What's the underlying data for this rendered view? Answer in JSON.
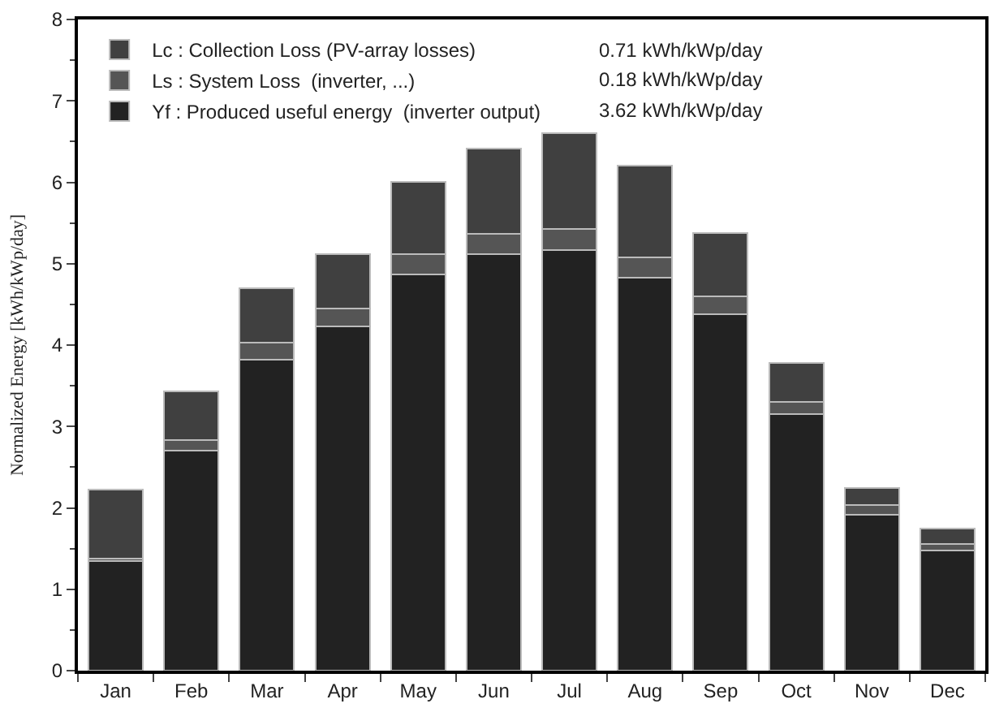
{
  "chart_data": {
    "type": "bar",
    "stacked": true,
    "ylabel": "Normalized Energy [kWh/kWp/day]",
    "categories": [
      "Jan",
      "Feb",
      "Mar",
      "Apr",
      "May",
      "Jun",
      "Jul",
      "Aug",
      "Sep",
      "Oct",
      "Nov",
      "Dec"
    ],
    "series": [
      {
        "name": "Yf : Produced useful energy  (inverter output)",
        "color": "#222222",
        "values": [
          1.35,
          2.7,
          3.82,
          4.23,
          4.87,
          5.12,
          5.17,
          4.83,
          4.38,
          3.15,
          1.92,
          1.48
        ]
      },
      {
        "name": "Ls : System Loss  (inverter, ...)",
        "color": "#555555",
        "values": [
          0.03,
          0.13,
          0.21,
          0.22,
          0.25,
          0.25,
          0.26,
          0.25,
          0.22,
          0.15,
          0.12,
          0.08
        ]
      },
      {
        "name": "Lc : Collection Loss (PV-array losses)",
        "color": "#404040",
        "values": [
          0.84,
          0.6,
          0.67,
          0.67,
          0.89,
          1.04,
          1.17,
          1.12,
          0.78,
          0.48,
          0.2,
          0.19
        ]
      }
    ],
    "annotations": [
      "3.62 kWh/kWp/day",
      "0.18 kWh/kWp/day",
      "0.71 kWh/kWp/day"
    ],
    "ylim": [
      0,
      8
    ],
    "yticks": [
      0,
      1,
      2,
      3,
      4,
      5,
      6,
      7,
      8
    ],
    "legend": "top left"
  }
}
